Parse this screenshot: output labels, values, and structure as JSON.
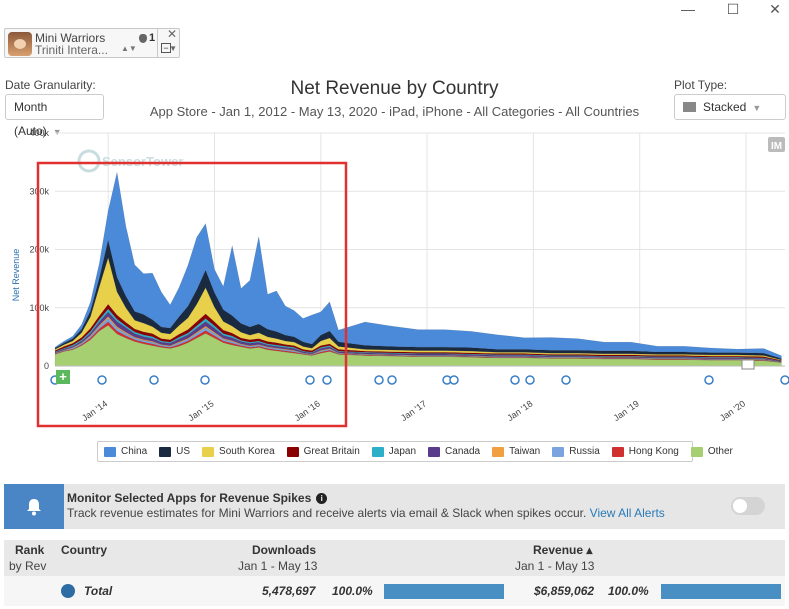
{
  "window_controls": {
    "minimize": "—",
    "maximize": "☐",
    "close": "✕"
  },
  "app_chip": {
    "name": "Mini Warriors",
    "publisher": "Triniti Intera...",
    "rank": "1",
    "icon": "game-avatar-icon"
  },
  "controls": {
    "date_granularity_label": "Date Granularity:",
    "date_granularity_value": "Month (Auto)",
    "plot_type_label": "Plot Type:",
    "plot_type_value": "Stacked"
  },
  "chart_data": {
    "type": "area",
    "title": "Net Revenue by Country",
    "subtitle": "App Store - Jan 1, 2012 - May 13, 2020 - iPad, iPhone - All Categories - All Countries",
    "ylabel": "Net Revenue",
    "ylim": [
      0,
      400000
    ],
    "yticks": [
      "0",
      "100k",
      "200k",
      "300k",
      "400k"
    ],
    "xticks": [
      "Jan '14",
      "Jan '15",
      "Jan '16",
      "Jan '17",
      "Jan '18",
      "Jan '19",
      "Jan '20"
    ],
    "watermark": "SensorTower",
    "badge": "IM",
    "stacked": true,
    "x": [
      "2013-07",
      "2013-08",
      "2013-09",
      "2013-10",
      "2013-11",
      "2013-12",
      "2014-01",
      "2014-02",
      "2014-03",
      "2014-04",
      "2014-05",
      "2014-06",
      "2014-07",
      "2014-08",
      "2014-09",
      "2014-10",
      "2014-11",
      "2014-12",
      "2015-01",
      "2015-02",
      "2015-03",
      "2015-04",
      "2015-05",
      "2015-06",
      "2015-07",
      "2015-08",
      "2015-09",
      "2015-10",
      "2015-11",
      "2015-12",
      "2016-01",
      "2016-02",
      "2016-03",
      "2016-06",
      "2016-09",
      "2016-12",
      "2017-03",
      "2017-06",
      "2017-09",
      "2017-12",
      "2018-03",
      "2018-06",
      "2018-09",
      "2018-12",
      "2019-03",
      "2019-06",
      "2019-09",
      "2019-12",
      "2020-03",
      "2020-05"
    ],
    "series": [
      {
        "name": "Other",
        "color": "#a6cf72",
        "values": [
          20000,
          25000,
          28000,
          35000,
          45000,
          60000,
          70000,
          55000,
          48000,
          42000,
          38000,
          35000,
          32000,
          30000,
          34000,
          40000,
          48000,
          56000,
          48000,
          40000,
          36000,
          33000,
          30000,
          32000,
          28000,
          26000,
          24000,
          22000,
          20000,
          18000,
          22000,
          25000,
          20000,
          18000,
          17000,
          16000,
          16000,
          15000,
          14000,
          14000,
          13000,
          13000,
          12000,
          12000,
          11000,
          11000,
          10000,
          10000,
          9000,
          6000
        ]
      },
      {
        "name": "Hong Kong",
        "color": "#d03030",
        "values": [
          1000,
          1000,
          1000,
          2000,
          3000,
          4000,
          6000,
          5000,
          4000,
          3000,
          3000,
          3000,
          2000,
          2000,
          3000,
          3000,
          4000,
          5000,
          4000,
          3000,
          3000,
          2000,
          2000,
          2000,
          2000,
          2000,
          2000,
          2000,
          1000,
          1000,
          2000,
          2000,
          1000,
          1000,
          1000,
          1000,
          1000,
          1000,
          1000,
          1000,
          1000,
          1000,
          1000,
          1000,
          1000,
          1000,
          1000,
          1000,
          1000,
          500
        ]
      },
      {
        "name": "Russia",
        "color": "#7aa3e0",
        "values": [
          1000,
          1000,
          2000,
          2000,
          3000,
          4000,
          6000,
          5000,
          4000,
          3000,
          3000,
          3000,
          2000,
          2000,
          3000,
          3000,
          4000,
          5000,
          4000,
          3000,
          3000,
          2000,
          2000,
          2000,
          2000,
          2000,
          2000,
          2000,
          1000,
          1000,
          2000,
          2000,
          1000,
          1000,
          1000,
          1000,
          1000,
          1000,
          1000,
          1000,
          1000,
          1000,
          1000,
          1000,
          1000,
          1000,
          1000,
          1000,
          1000,
          500
        ]
      },
      {
        "name": "Taiwan",
        "color": "#f0a040",
        "values": [
          500,
          500,
          1000,
          1000,
          1500,
          2000,
          3000,
          2500,
          2000,
          1500,
          1500,
          1500,
          1000,
          1000,
          1500,
          1500,
          2000,
          2500,
          2000,
          1500,
          1500,
          1000,
          1000,
          1000,
          1000,
          1000,
          1000,
          1000,
          500,
          500,
          1000,
          1000,
          500,
          500,
          500,
          500,
          500,
          500,
          500,
          500,
          500,
          500,
          500,
          500,
          500,
          500,
          500,
          500,
          500,
          300
        ]
      },
      {
        "name": "Canada",
        "color": "#5a3c8a",
        "values": [
          1000,
          2000,
          2000,
          3000,
          4000,
          6000,
          8000,
          9000,
          8000,
          6000,
          5000,
          5000,
          4000,
          4000,
          5000,
          6000,
          7000,
          8000,
          7000,
          5000,
          5000,
          4000,
          4000,
          4000,
          3000,
          3000,
          3000,
          3000,
          2000,
          2000,
          3000,
          3000,
          2000,
          2000,
          2000,
          2000,
          2000,
          2000,
          2000,
          2000,
          1500,
          1500,
          1500,
          1500,
          1500,
          1500,
          1500,
          1500,
          1500,
          800
        ]
      },
      {
        "name": "Japan",
        "color": "#2bb0c8",
        "values": [
          1000,
          1000,
          2000,
          2000,
          3000,
          4000,
          5000,
          4000,
          3000,
          3000,
          3000,
          3000,
          2000,
          2000,
          3000,
          3000,
          4000,
          5000,
          4000,
          3000,
          3000,
          2000,
          2000,
          2000,
          2000,
          2000,
          2000,
          2000,
          1000,
          1000,
          2000,
          2000,
          1000,
          1000,
          1000,
          1000,
          1000,
          1000,
          1000,
          1000,
          1000,
          1000,
          1000,
          1000,
          1000,
          1000,
          1000,
          1000,
          1000,
          500
        ]
      },
      {
        "name": "Great Britain",
        "color": "#8b0000",
        "values": [
          2000,
          3000,
          3000,
          4000,
          5000,
          6000,
          8000,
          7000,
          6000,
          5000,
          5000,
          5000,
          4000,
          4000,
          5000,
          6000,
          7000,
          8000,
          7000,
          6000,
          5000,
          4000,
          4000,
          4000,
          4000,
          4000,
          3000,
          3000,
          3000,
          3000,
          3000,
          3000,
          3000,
          2000,
          2000,
          2000,
          2000,
          2000,
          2000,
          2000,
          2000,
          2000,
          2000,
          2000,
          2000,
          2000,
          2000,
          2000,
          2000,
          1000
        ]
      },
      {
        "name": "South Korea",
        "color": "#e8d04a",
        "values": [
          2000,
          3000,
          4000,
          8000,
          20000,
          50000,
          80000,
          40000,
          25000,
          15000,
          15000,
          12000,
          10000,
          10000,
          15000,
          20000,
          30000,
          45000,
          25000,
          15000,
          12000,
          10000,
          8000,
          10000,
          8000,
          7000,
          6000,
          6000,
          5000,
          4000,
          8000,
          10000,
          5000,
          3000,
          3000,
          3000,
          3000,
          3000,
          2000,
          2000,
          2000,
          2000,
          2000,
          2000,
          2000,
          2000,
          2000,
          2000,
          2000,
          1000
        ]
      },
      {
        "name": "US",
        "color": "#1a2a40",
        "values": [
          2000,
          3000,
          4000,
          6000,
          10000,
          15000,
          30000,
          25000,
          20000,
          15000,
          15000,
          12000,
          10000,
          10000,
          15000,
          20000,
          25000,
          30000,
          25000,
          20000,
          18000,
          15000,
          14000,
          15000,
          13000,
          12000,
          10000,
          9000,
          8000,
          7000,
          10000,
          12000,
          8000,
          7000,
          6000,
          6000,
          6000,
          6000,
          5000,
          5000,
          5000,
          5000,
          5000,
          5000,
          4000,
          4000,
          4000,
          4000,
          4000,
          2000
        ]
      },
      {
        "name": "China",
        "color": "#4a8ad8",
        "values": [
          2000,
          3000,
          4000,
          8000,
          15000,
          25000,
          50000,
          180000,
          120000,
          80000,
          70000,
          80000,
          60000,
          40000,
          50000,
          70000,
          90000,
          80000,
          40000,
          40000,
          120000,
          60000,
          80000,
          150000,
          60000,
          70000,
          50000,
          45000,
          40000,
          50000,
          40000,
          50000,
          20000,
          40000,
          35000,
          30000,
          30000,
          28000,
          25000,
          20000,
          22000,
          20000,
          15000,
          15000,
          10000,
          10000,
          8000,
          6000,
          8000,
          5000
        ]
      }
    ]
  },
  "legend": [
    "China",
    "US",
    "South Korea",
    "Great Britain",
    "Japan",
    "Canada",
    "Taiwan",
    "Russia",
    "Hong Kong",
    "Other"
  ],
  "legend_colors": [
    "#4a8ad8",
    "#1a2a40",
    "#e8d04a",
    "#8b0000",
    "#2bb0c8",
    "#5a3c8a",
    "#f0a040",
    "#7aa3e0",
    "#d03030",
    "#a6cf72"
  ],
  "monitor": {
    "title": "Monitor Selected Apps for Revenue Spikes",
    "info": "i",
    "description": "Track revenue estimates for Mini Warriors and receive alerts via email & Slack when spikes occur.",
    "link": "View All Alerts"
  },
  "table": {
    "headers": {
      "rank": "Rank",
      "rank_sub": "by Rev",
      "country": "Country",
      "downloads": "Downloads",
      "downloads_sub": "Jan 1 - May 13",
      "revenue": "Revenue ▴",
      "revenue_sub": "Jan 1 - May 13"
    },
    "rows": [
      {
        "country": "Total",
        "downloads": "5,478,697",
        "downloads_pct": "100.0%",
        "downloads_share": 1.0,
        "revenue": "$6,859,062",
        "revenue_pct": "100.0%",
        "revenue_share": 1.0
      }
    ]
  }
}
